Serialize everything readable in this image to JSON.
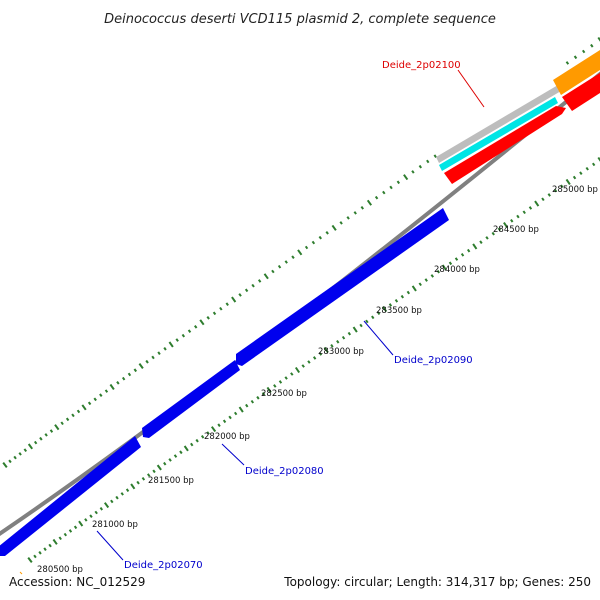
{
  "title": "Deinococcus deserti VCD115 plasmid 2, complete sequence",
  "footer": {
    "accession": "Accession: NC_012529",
    "summary": "Topology: circular; Length: 314,317 bp; Genes: 250"
  },
  "colors": {
    "backbone": "#808080",
    "forward_gene": "#ff0000",
    "reverse_gene": "#0000ee",
    "cyan_feature": "#00e5e5",
    "orange_feature": "#ff9a00",
    "light_grey_feature": "#bdbdbd",
    "tick_marks": "#2e7d2e",
    "forward_label": "#dd0000",
    "reverse_label": "#0000cc"
  },
  "position_ticks": [
    {
      "label": "280500 bp"
    },
    {
      "label": "281000 bp"
    },
    {
      "label": "281500 bp"
    },
    {
      "label": "282000 bp"
    },
    {
      "label": "282500 bp"
    },
    {
      "label": "283000 bp"
    },
    {
      "label": "283500 bp"
    },
    {
      "label": "284000 bp"
    },
    {
      "label": "284500 bp"
    },
    {
      "label": "285000 bp"
    }
  ],
  "genes": [
    {
      "label": "Deide_2p02070",
      "strand": "reverse"
    },
    {
      "label": "Deide_2p02080",
      "strand": "reverse"
    },
    {
      "label": "Deide_2p02090",
      "strand": "reverse"
    },
    {
      "label": "Deide_2p02100",
      "strand": "forward"
    }
  ]
}
